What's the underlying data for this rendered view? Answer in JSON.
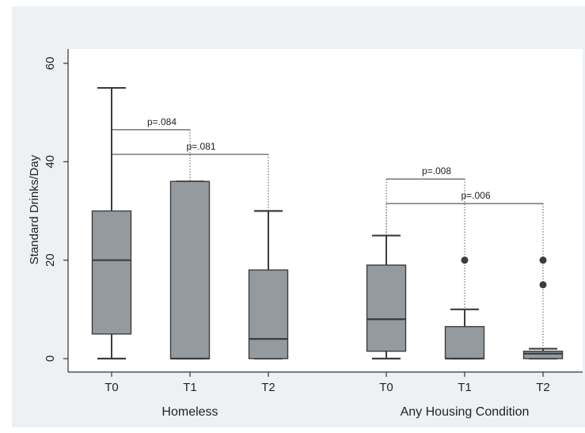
{
  "chart_data": {
    "type": "box",
    "ylabel": "Standard Drinks/Day",
    "ylim": [
      -3,
      62
    ],
    "yticks": [
      0,
      20,
      40,
      60
    ],
    "groups": [
      {
        "name": "Homeless",
        "boxes": [
          {
            "label": "T0",
            "whisker_low": 0,
            "q1": 5,
            "median": 20,
            "q3": 30,
            "whisker_high": 55,
            "outliers": []
          },
          {
            "label": "T1",
            "whisker_low": 0,
            "q1": 0,
            "median": 0,
            "q3": 36,
            "whisker_high": 36,
            "outliers": []
          },
          {
            "label": "T2",
            "whisker_low": 0,
            "q1": 0,
            "median": 4,
            "q3": 18,
            "whisker_high": 30,
            "outliers": []
          }
        ],
        "comparisons": [
          {
            "from": 0,
            "to": 1,
            "y": 46.5,
            "label": "p=.084"
          },
          {
            "from": 0,
            "to": 2,
            "y": 41.5,
            "label": "p=.081"
          }
        ]
      },
      {
        "name": "Any Housing Condition",
        "boxes": [
          {
            "label": "T0",
            "whisker_low": 0,
            "q1": 1.5,
            "median": 8,
            "q3": 19,
            "whisker_high": 25,
            "outliers": []
          },
          {
            "label": "T1",
            "whisker_low": 0,
            "q1": 0,
            "median": 0,
            "q3": 6.5,
            "whisker_high": 10,
            "outliers": [
              20
            ]
          },
          {
            "label": "T2",
            "whisker_low": 0,
            "q1": 0,
            "median": 1,
            "q3": 1.5,
            "whisker_high": 2,
            "outliers": [
              20,
              15
            ]
          }
        ],
        "comparisons": [
          {
            "from": 0,
            "to": 1,
            "y": 36.5,
            "label": "p=.008"
          },
          {
            "from": 0,
            "to": 2,
            "y": 31.5,
            "label": "p=.006"
          }
        ]
      }
    ],
    "colors": {
      "box_fill": "#959a9e",
      "stroke": "#3a3d40",
      "background": "#eef1f4",
      "plot_bg": "#ffffff"
    }
  }
}
